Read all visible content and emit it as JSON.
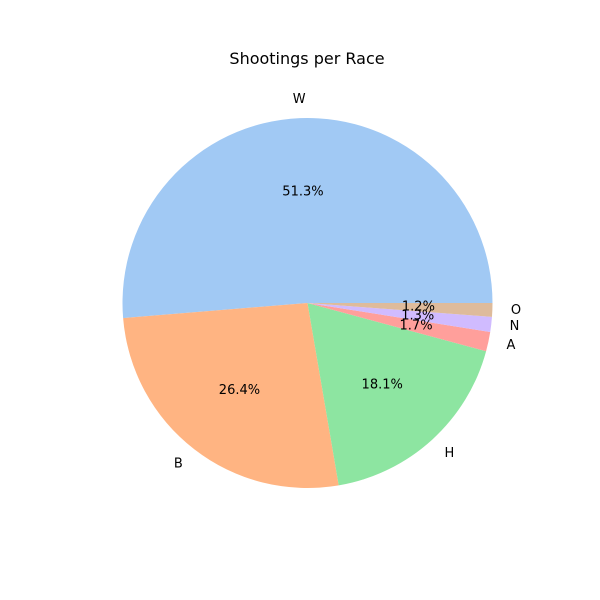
{
  "chart_data": {
    "type": "pie",
    "title": "Shootings per Race",
    "categories": [
      "W",
      "B",
      "H",
      "A",
      "N",
      "O"
    ],
    "values": [
      51.3,
      26.4,
      18.1,
      1.7,
      1.3,
      1.2
    ],
    "value_labels": [
      "51.3%",
      "26.4%",
      "18.1%",
      "1.7%",
      "1.3%",
      "1.2%"
    ],
    "colors": [
      "#a1c9f4",
      "#ffb482",
      "#8de5a1",
      "#ff9f9b",
      "#d0bbff",
      "#debb9b"
    ],
    "start_angle_deg": 0,
    "direction": "counterclockwise"
  }
}
